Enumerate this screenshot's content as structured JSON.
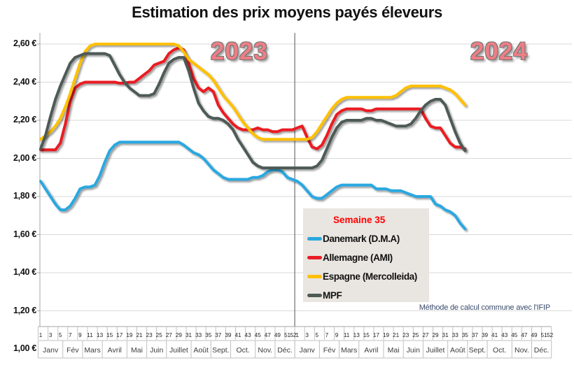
{
  "title": "Estimation des prix moyens payés éleveurs",
  "year_labels": [
    "2023",
    "2024"
  ],
  "footnote": "Méthode de calcul commune avec l'IFIP",
  "legend": {
    "title": "Semaine 35",
    "items": [
      {
        "label": "Danemark (D.M.A)",
        "color": "#29a8e0"
      },
      {
        "label": "Allemagne (AMI)",
        "color": "#ea1c24"
      },
      {
        "label": "Espagne (Mercolleida)",
        "color": "#ffc000"
      },
      {
        "label": "MPF",
        "color": "#4e5a56"
      }
    ]
  },
  "y_axis": {
    "tick_labels": [
      "2,60 €",
      "2,40 €",
      "2,20 €",
      "2,00 €",
      "1,80 €",
      "1,60 €",
      "1,40 €",
      "1,20 €",
      "1,00 €"
    ],
    "tick_values": [
      2.6,
      2.4,
      2.2,
      2.0,
      1.8,
      1.6,
      1.4,
      1.2,
      1.0
    ]
  },
  "x_axis": {
    "odd_week_labels": [
      "1",
      "3",
      "5",
      "7",
      "9",
      "11",
      "13",
      "15",
      "17",
      "19",
      "21",
      "23",
      "25",
      "27",
      "29",
      "31",
      "33",
      "35",
      "37",
      "39",
      "41",
      "43",
      "45",
      "47",
      "49",
      "51"
    ],
    "extra_week_label": "52",
    "months": [
      "Janv",
      "Fév",
      "Mars",
      "Avril",
      "Mai",
      "Juin",
      "Juillet",
      "Août",
      "Sept.",
      "Oct.",
      "Nov.",
      "Déc."
    ],
    "month_week_counts": [
      5,
      4,
      4,
      5,
      4,
      4,
      5,
      4,
      4,
      5,
      4,
      4
    ],
    "years": [
      "2023",
      "2024"
    ]
  },
  "colors": {
    "grid": "#d9d9d9",
    "axis": "#a6a6a6",
    "tick": "#c3c3c3",
    "month_border": "#bfbfbf",
    "divider": "#6e6e6e",
    "week_text": "#222222",
    "month_text": "#3d3d3d"
  },
  "chart_data": {
    "type": "line",
    "title": "Estimation des prix moyens payés éleveurs",
    "x_description": "Semaines: 2023 semaines 1-52 puis 2024 semaines 1-35",
    "ylim": [
      1.0,
      2.7
    ],
    "grid": true,
    "legend_position": "center-bottom",
    "series": [
      {
        "name": "Danemark (D.M.A)",
        "color": "#29a8e0",
        "values_2023": [
          1.88,
          1.84,
          1.8,
          1.76,
          1.73,
          1.73,
          1.75,
          1.79,
          1.84,
          1.85,
          1.85,
          1.86,
          1.91,
          1.98,
          2.04,
          2.07,
          2.085,
          2.085,
          2.085,
          2.085,
          2.085,
          2.085,
          2.085,
          2.085,
          2.085,
          2.085,
          2.085,
          2.085,
          2.085,
          2.07,
          2.05,
          2.03,
          2.02,
          2.0,
          1.97,
          1.94,
          1.92,
          1.9,
          1.89,
          1.89,
          1.89,
          1.89,
          1.89,
          1.9,
          1.9,
          1.91,
          1.93,
          1.94,
          1.94,
          1.93,
          1.9,
          1.89
        ],
        "values_2024": [
          1.88,
          1.86,
          1.83,
          1.8,
          1.79,
          1.79,
          1.81,
          1.83,
          1.85,
          1.86,
          1.86,
          1.86,
          1.86,
          1.86,
          1.86,
          1.86,
          1.84,
          1.84,
          1.84,
          1.83,
          1.83,
          1.83,
          1.82,
          1.81,
          1.8,
          1.8,
          1.8,
          1.8,
          1.76,
          1.75,
          1.73,
          1.72,
          1.7,
          1.66,
          1.63
        ]
      },
      {
        "name": "Allemagne (AMI)",
        "color": "#ea1c24",
        "values_2023": [
          2.045,
          2.045,
          2.045,
          2.045,
          2.08,
          2.18,
          2.3,
          2.37,
          2.39,
          2.4,
          2.4,
          2.4,
          2.4,
          2.4,
          2.4,
          2.4,
          2.395,
          2.395,
          2.4,
          2.4,
          2.42,
          2.44,
          2.46,
          2.49,
          2.5,
          2.51,
          2.55,
          2.57,
          2.58,
          2.57,
          2.5,
          2.42,
          2.37,
          2.35,
          2.37,
          2.35,
          2.28,
          2.24,
          2.21,
          2.18,
          2.16,
          2.15,
          2.15,
          2.15,
          2.16,
          2.15,
          2.15,
          2.14,
          2.14,
          2.15,
          2.15,
          2.15
        ],
        "values_2024": [
          2.16,
          2.17,
          2.11,
          2.06,
          2.05,
          2.07,
          2.12,
          2.18,
          2.23,
          2.25,
          2.26,
          2.26,
          2.26,
          2.26,
          2.25,
          2.25,
          2.26,
          2.26,
          2.26,
          2.26,
          2.26,
          2.26,
          2.26,
          2.26,
          2.26,
          2.26,
          2.21,
          2.17,
          2.16,
          2.16,
          2.12,
          2.08,
          2.06,
          2.06,
          2.05
        ]
      },
      {
        "name": "Espagne (Mercolleida)",
        "color": "#ffc000",
        "values_2023": [
          2.1,
          2.12,
          2.14,
          2.17,
          2.21,
          2.27,
          2.34,
          2.42,
          2.5,
          2.56,
          2.59,
          2.6,
          2.6,
          2.6,
          2.6,
          2.6,
          2.6,
          2.6,
          2.6,
          2.6,
          2.6,
          2.6,
          2.6,
          2.6,
          2.6,
          2.6,
          2.6,
          2.6,
          2.59,
          2.56,
          2.52,
          2.5,
          2.48,
          2.46,
          2.44,
          2.41,
          2.37,
          2.33,
          2.3,
          2.27,
          2.23,
          2.19,
          2.16,
          2.13,
          2.11,
          2.1,
          2.1,
          2.1,
          2.1,
          2.1,
          2.1,
          2.1
        ],
        "values_2024": [
          2.1,
          2.1,
          2.1,
          2.11,
          2.14,
          2.18,
          2.22,
          2.26,
          2.29,
          2.31,
          2.32,
          2.32,
          2.32,
          2.32,
          2.32,
          2.32,
          2.32,
          2.32,
          2.32,
          2.32,
          2.33,
          2.35,
          2.37,
          2.38,
          2.38,
          2.38,
          2.38,
          2.38,
          2.38,
          2.38,
          2.37,
          2.36,
          2.34,
          2.31,
          2.28
        ]
      },
      {
        "name": "MPF",
        "color": "#4e5a56",
        "values_2023": [
          2.05,
          2.12,
          2.22,
          2.31,
          2.38,
          2.44,
          2.5,
          2.53,
          2.54,
          2.55,
          2.55,
          2.55,
          2.55,
          2.55,
          2.54,
          2.49,
          2.44,
          2.4,
          2.37,
          2.35,
          2.33,
          2.33,
          2.33,
          2.34,
          2.39,
          2.45,
          2.5,
          2.52,
          2.53,
          2.53,
          2.46,
          2.37,
          2.29,
          2.25,
          2.22,
          2.21,
          2.21,
          2.2,
          2.18,
          2.15,
          2.1,
          2.06,
          2.02,
          1.98,
          1.96,
          1.95,
          1.95,
          1.95,
          1.95,
          1.95,
          1.95,
          1.95
        ],
        "values_2024": [
          1.95,
          1.95,
          1.95,
          1.95,
          1.96,
          1.99,
          2.05,
          2.11,
          2.16,
          2.19,
          2.2,
          2.2,
          2.2,
          2.2,
          2.21,
          2.21,
          2.2,
          2.2,
          2.19,
          2.18,
          2.17,
          2.17,
          2.17,
          2.18,
          2.21,
          2.25,
          2.28,
          2.3,
          2.31,
          2.31,
          2.28,
          2.21,
          2.14,
          2.08,
          2.04
        ]
      }
    ]
  }
}
